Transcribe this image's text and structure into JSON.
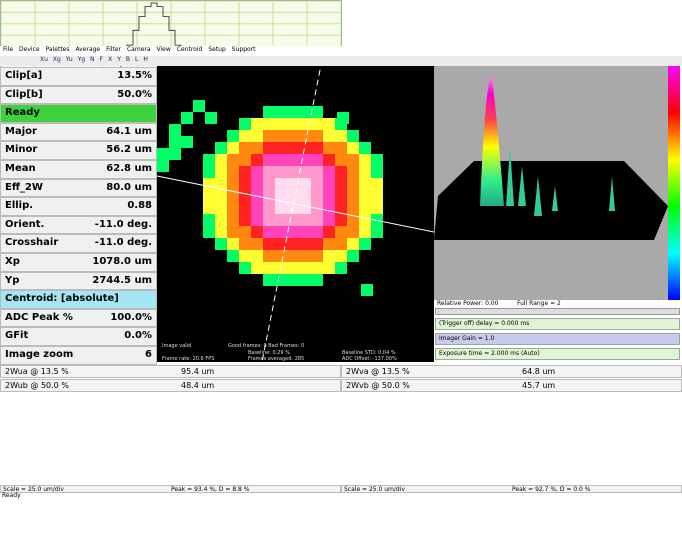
{
  "menu": [
    "File",
    "Device",
    "Palettes",
    "Average",
    "Filter",
    "Camera",
    "View",
    "Centroid",
    "Setup",
    "Support"
  ],
  "toolbar": [
    "Xu",
    "Xg",
    "Yu",
    "Yg",
    "N",
    "F",
    "X",
    "Y",
    "B",
    "L",
    "H"
  ],
  "left_panel": {
    "rows": [
      {
        "label": "Clip[a]",
        "value": "13.5%"
      },
      {
        "label": "Clip[b]",
        "value": "50.0%"
      },
      {
        "label": "Ready",
        "color": "#3fd23f"
      },
      {
        "label": "Major",
        "value": "64.1 um"
      },
      {
        "label": "Minor",
        "value": "56.2 um"
      },
      {
        "label": "Mean",
        "value": "62.8 um"
      },
      {
        "label": "Eff_2W",
        "value": "80.0 um"
      },
      {
        "label": "Ellip.",
        "value": "0.88"
      },
      {
        "label": "Orient.",
        "value": "-11.0 deg."
      },
      {
        "label": "Crosshair",
        "value": "-11.0 deg."
      },
      {
        "label": "Xp",
        "value": "1078.0 um"
      },
      {
        "label": "Yp",
        "value": "2744.5 um"
      },
      {
        "label": "Centroid: [absolute]",
        "color": "#a4e6f4"
      },
      {
        "label": "ADC Peak %",
        "value": "100.0%"
      },
      {
        "label": "GFit",
        "value": "0.0%"
      },
      {
        "label": "Image zoom",
        "value": "6"
      }
    ]
  },
  "image_overlay": {
    "status": "Image valid",
    "frames": "Good frames: 0 Bad Frames: 0",
    "baseline": "Baseline: 0.29 %",
    "baseline_std": "Baseline STD: 0.04 %",
    "frame_rate": "Frame rate: 20.6 FPS",
    "frames_averaged": "Frames averaged: 285",
    "adc_offset": "ADC Offset: -137.00%"
  },
  "right_panel": {
    "relative_power": "Relative Power: 0.00",
    "full_range": "Full Range = 2",
    "trigger": "(Trigger off) delay = 0.000 ms",
    "gain": "Imager Gain = 1.0",
    "exposure": "Exposure time = 2.000 ms (Auto)"
  },
  "profiles": [
    {
      "label_a": "2Wua @ 13.5 %",
      "value_a": "95.4 um",
      "label_b": "2Wub @ 50.0 %",
      "value_b": "48.4 um",
      "scale": "Scale = 25.0 um/div",
      "peak": "Peak = 93.4 %, D = 8.8 %"
    },
    {
      "label_a": "2Wva @ 13.5 %",
      "value_a": "64.8 um",
      "label_b": "2Wvb @ 50.0 %",
      "value_b": "45.7 um",
      "scale": "Scale = 25.0 um/div",
      "peak": "Peak = 92.7 %, D = 0.0 %"
    }
  ],
  "status": "Ready"
}
